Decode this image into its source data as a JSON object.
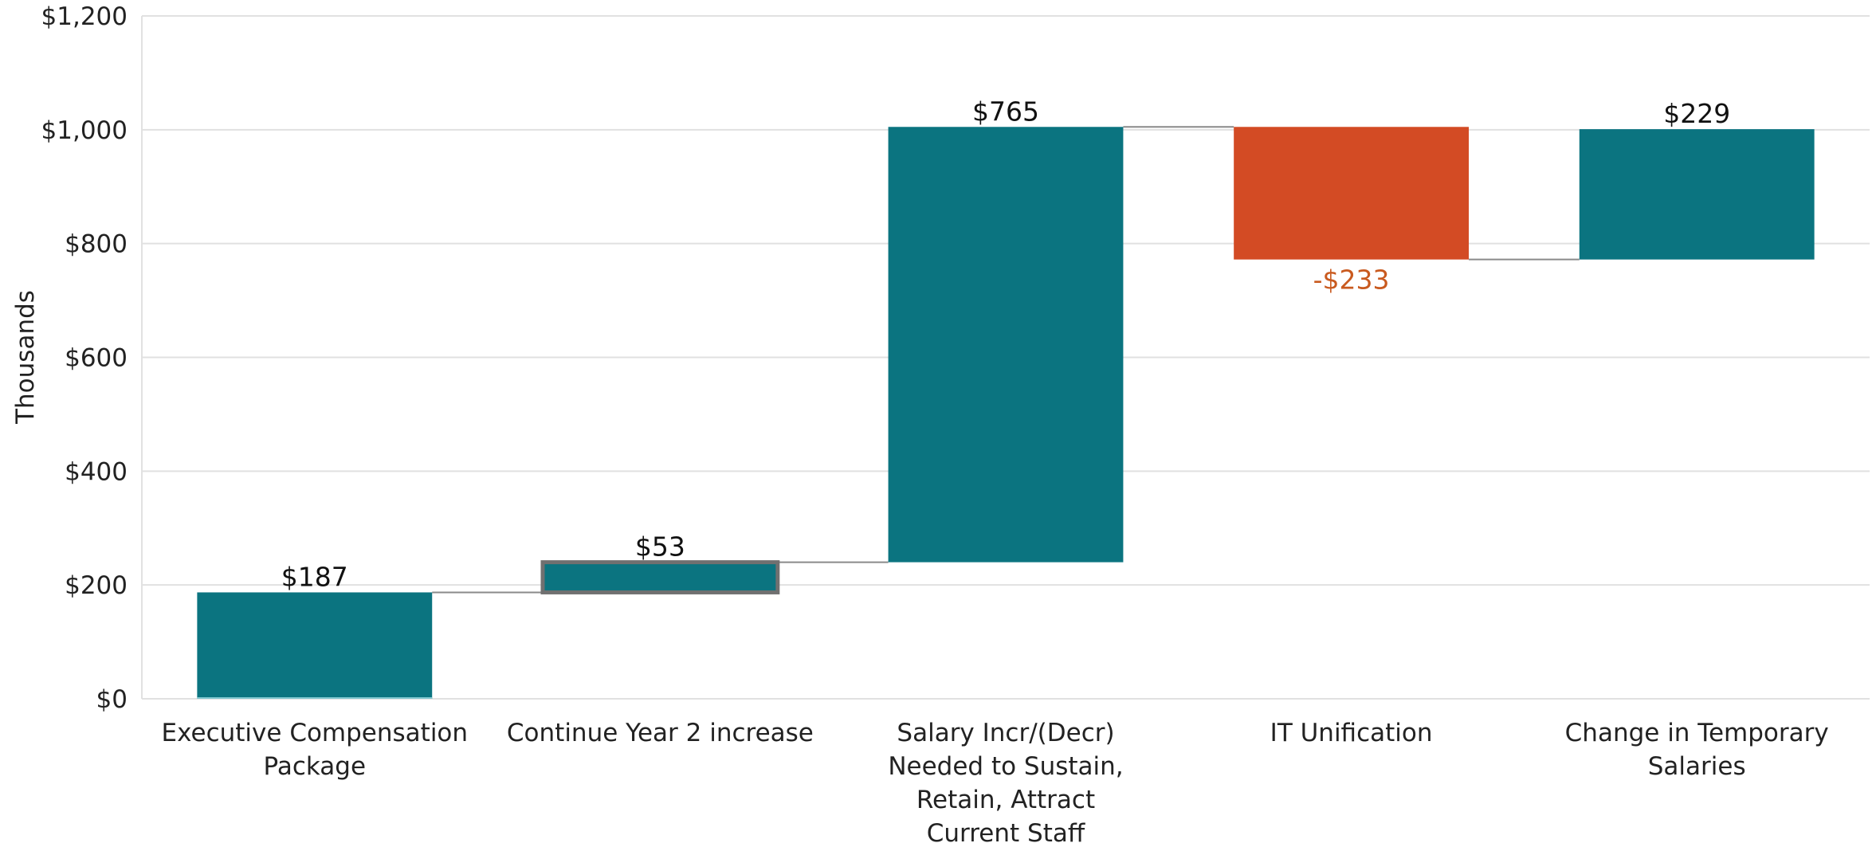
{
  "chart_data": {
    "type": "waterfall",
    "title": "",
    "xlabel": "",
    "ylabel": "Thousands",
    "ylim": [
      0,
      1200
    ],
    "y_ticks": [
      "$0",
      "$200",
      "$400",
      "$600",
      "$800",
      "$1,000",
      "$1,200"
    ],
    "y_tick_values": [
      0,
      200,
      400,
      600,
      800,
      1000,
      1200
    ],
    "grid": true,
    "legend": "none",
    "categories": [
      [
        "Executive Compensation",
        "Package"
      ],
      [
        "Continue Year 2 increase"
      ],
      [
        "Salary Incr/(Decr)",
        "Needed to Sustain,",
        "Retain, Attract",
        "Current Staff"
      ],
      [
        "IT Unification"
      ],
      [
        "Change in Temporary",
        "Salaries"
      ]
    ],
    "values": [
      187,
      53,
      765,
      -233,
      229
    ],
    "data_labels": [
      "$187",
      "$53",
      "$765",
      "-$233",
      "$229"
    ],
    "colors": {
      "increase": "#0b7480",
      "decrease": "#d34b24",
      "negative_label": "#c95a1f",
      "highlight_border": "#707070"
    },
    "highlighted_index": 1
  }
}
